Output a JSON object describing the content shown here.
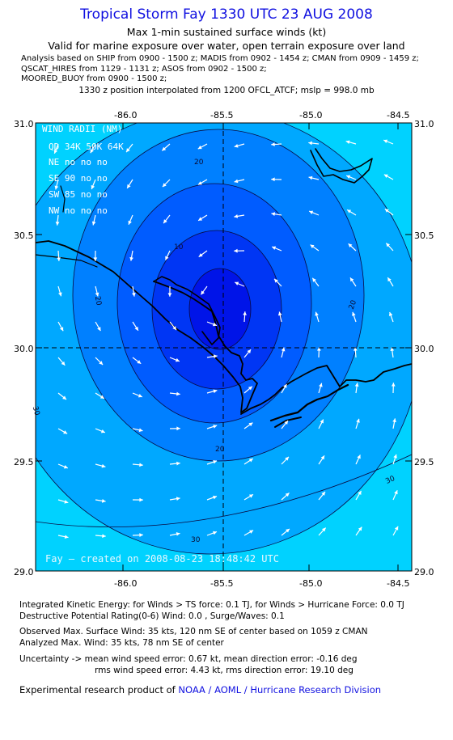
{
  "header": {
    "title": "Tropical Storm Fay 1330 UTC 23 AUG 2008",
    "subtitle1": "Max 1-min sustained surface winds (kt)",
    "subtitle2": "Valid for marine exposure over water, open terrain exposure over land",
    "analysis_lines": [
      "Analysis based on  SHIP from 0900 - 1500 z;  MADIS from 0902 - 1454 z;  CMAN from 0909 - 1459 z;",
      "QSCAT_HIRES from 1129 - 1131 z;  ASOS from 0902 - 1500 z;",
      "MOORED_BUOY from 0900 - 1500 z;"
    ],
    "interp_line": "1330 z position interpolated from 1200 OFCL_ATCF; mslp = 998.0 mb"
  },
  "map": {
    "lon_ticks": [
      "-86.0",
      "-85.5",
      "-85.0",
      "-84.5"
    ],
    "lat_ticks": [
      "31.0",
      "30.5",
      "30.0",
      "29.5",
      "29.0"
    ],
    "contour_labels": [
      "20",
      "10",
      "20",
      "20",
      "20",
      "30",
      "30",
      "30"
    ],
    "wind_radii": {
      "title": "WIND RADII (NM)",
      "header": "QD 34K 50K 64K",
      "rows": [
        "NE  no  no  no",
        "SE  90  no  no",
        "SW  85  no  no",
        "NW  no  no  no"
      ]
    },
    "footer_text": "Fay — created on 2008-08-23 18:48:42 UTC",
    "colors": {
      "band_30_plus": "#00d2ff",
      "band_20_30": "#00a8ff",
      "band_15_20": "#0080ff",
      "band_10_15": "#005cff",
      "band_5_10": "#0036f4",
      "band_0_5": "#0014e8",
      "land_outline": "#000000",
      "arrow": "#ffffff"
    }
  },
  "stats": {
    "ike_line": "Integrated Kinetic Energy:  for Winds > TS force: 0.1 TJ,  for Winds > Hurricane Force: 0.0 TJ",
    "dpr_line": "Destructive Potential Rating(0-6)   Wind: 0.0 , Surge/Waves: 0.1",
    "observed_line": "Observed Max. Surface Wind: 35 kts, 120 nm SE of center based on 1059 z CMAN",
    "analyzed_line": "Analyzed Max. Wind: 35 kts, 78 nm SE of center",
    "uncertainty_line1": "Uncertainty -> mean wind speed error: 0.67 kt,   mean direction error:  -0.16 deg",
    "uncertainty_line2": "rms wind speed error: 4.43 kt,   rms direction error: 19.10 deg"
  },
  "credit": {
    "prefix": "Experimental research product of",
    "link": "NOAA / AOML / Hurricane Research Division"
  }
}
